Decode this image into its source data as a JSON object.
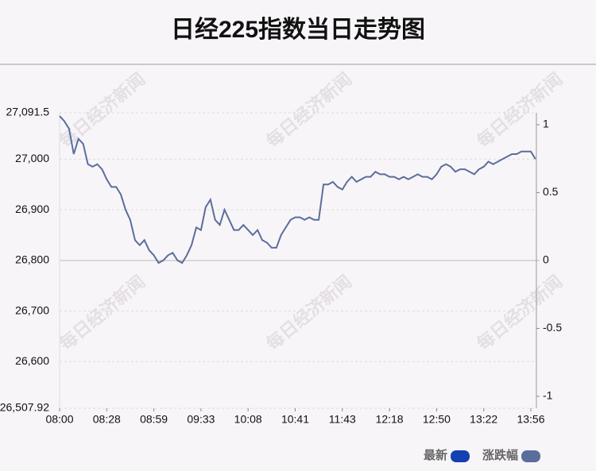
{
  "chart_data": {
    "type": "line",
    "title": "日经225指数当日走势图",
    "watermark": "每日经济新闻",
    "categories": [
      "08:00",
      null,
      null,
      null,
      null,
      null,
      null,
      null,
      null,
      null,
      "08:28",
      null,
      null,
      null,
      null,
      null,
      null,
      null,
      null,
      null,
      "08:59",
      null,
      null,
      null,
      null,
      null,
      null,
      null,
      null,
      null,
      "09:33",
      null,
      null,
      null,
      null,
      null,
      null,
      null,
      null,
      null,
      "10:08",
      null,
      null,
      null,
      null,
      null,
      null,
      null,
      null,
      null,
      "10:41",
      null,
      null,
      null,
      null,
      null,
      null,
      null,
      null,
      null,
      "11:43",
      null,
      null,
      null,
      null,
      null,
      null,
      null,
      null,
      null,
      "12:18",
      null,
      null,
      null,
      null,
      null,
      null,
      null,
      null,
      null,
      "12:50",
      null,
      null,
      null,
      null,
      null,
      null,
      null,
      null,
      null,
      "13:22",
      null,
      null,
      null,
      null,
      null,
      null,
      null,
      null,
      null,
      "13:56",
      null
    ],
    "series": [
      {
        "name": "最新",
        "color": "#5a6e9c",
        "values": [
          27085,
          27075,
          27060,
          27010,
          27040,
          27030,
          26990,
          26985,
          26990,
          26980,
          26960,
          26945,
          26945,
          26930,
          26900,
          26880,
          26840,
          26830,
          26840,
          26820,
          26810,
          26795,
          26800,
          26810,
          26815,
          26800,
          26795,
          26810,
          26830,
          26865,
          26860,
          26905,
          26920,
          26880,
          26870,
          26900,
          26880,
          26860,
          26860,
          26870,
          26860,
          26850,
          26860,
          26840,
          26835,
          26825,
          26825,
          26850,
          26865,
          26880,
          26885,
          26885,
          26880,
          26885,
          26880,
          26880,
          26950,
          26950,
          26955,
          26945,
          26940,
          26955,
          26965,
          26955,
          26960,
          26965,
          26965,
          26975,
          26970,
          26970,
          26965,
          26965,
          26960,
          26965,
          26960,
          26965,
          26970,
          26965,
          26965,
          26960,
          26970,
          26985,
          26990,
          26985,
          26975,
          26980,
          26980,
          26975,
          26970,
          26980,
          26985,
          26995,
          26990,
          26995,
          27000,
          27005,
          27010,
          27010,
          27015,
          27015,
          27015,
          27000
        ]
      }
    ],
    "legend": [
      {
        "name": "最新",
        "color": "#1440b0"
      },
      {
        "name": "涨跌幅",
        "color": "#5a6e9c"
      }
    ],
    "ylim": [
      26507.92,
      27091.5
    ],
    "yticks": [
      {
        "value": 26507.92,
        "label": "26,507.92"
      },
      {
        "value": 26600,
        "label": "26,600"
      },
      {
        "value": 26700,
        "label": "26,700"
      },
      {
        "value": 26800,
        "label": "26,800"
      },
      {
        "value": 26900,
        "label": "26,900"
      },
      {
        "value": 27000,
        "label": "27,000"
      },
      {
        "value": 27091.5,
        "label": "27,091.5"
      }
    ],
    "y2lim": [
      -1.088,
      1.088
    ],
    "y2ticks": [
      -1,
      -0.5,
      0,
      0.5,
      1
    ],
    "grid": true
  }
}
